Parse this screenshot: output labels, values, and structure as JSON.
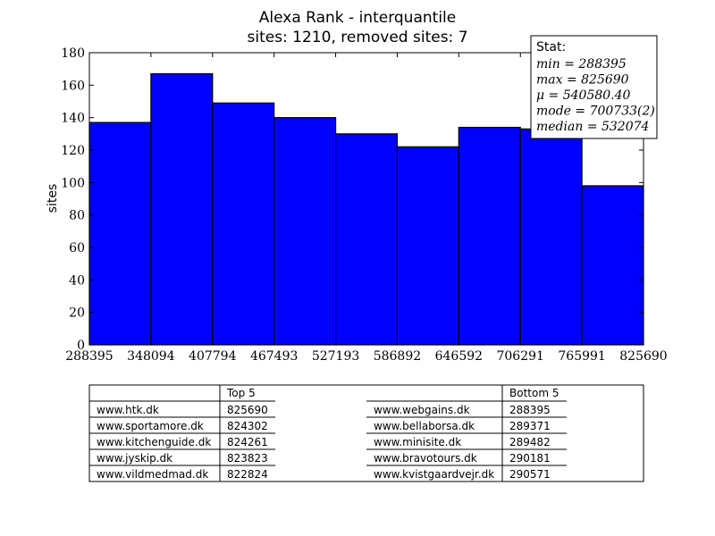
{
  "chart_data": {
    "type": "bar",
    "title": "Alexa Rank - interquantile",
    "subtitle": "sites: 1210, removed sites: 7",
    "xlabel": "",
    "ylabel": "sites",
    "x_ticks": [
      "288395",
      "348094",
      "407794",
      "467493",
      "527193",
      "586892",
      "646592",
      "706291",
      "765991",
      "825690"
    ],
    "y_ticks": [
      "0",
      "20",
      "40",
      "60",
      "80",
      "100",
      "120",
      "140",
      "160",
      "180"
    ],
    "ylim": [
      0,
      180
    ],
    "values": [
      137,
      167,
      149,
      140,
      130,
      122,
      134,
      133,
      98
    ],
    "bar_color": "#0000ff",
    "grid": false
  },
  "stats": {
    "header": "Stat:",
    "lines": [
      "min = 288395",
      "max = 825690",
      "μ = 540580.40",
      "mode = 700733(2)",
      "median = 532074"
    ]
  },
  "table": {
    "top_header": "Top 5",
    "bottom_header": "Bottom 5",
    "top": [
      {
        "site": "www.htk.dk",
        "rank": "825690"
      },
      {
        "site": "www.sportamore.dk",
        "rank": "824302"
      },
      {
        "site": "www.kitchenguide.dk",
        "rank": "824261"
      },
      {
        "site": "www.jyskip.dk",
        "rank": "823823"
      },
      {
        "site": "www.vildmedmad.dk",
        "rank": "822824"
      }
    ],
    "bottom": [
      {
        "site": "www.webgains.dk",
        "rank": "288395"
      },
      {
        "site": "www.bellaborsa.dk",
        "rank": "289371"
      },
      {
        "site": "www.minisite.dk",
        "rank": "289482"
      },
      {
        "site": "www.bravotours.dk",
        "rank": "290181"
      },
      {
        "site": "www.kvistgaardvejr.dk",
        "rank": "290571"
      }
    ]
  }
}
